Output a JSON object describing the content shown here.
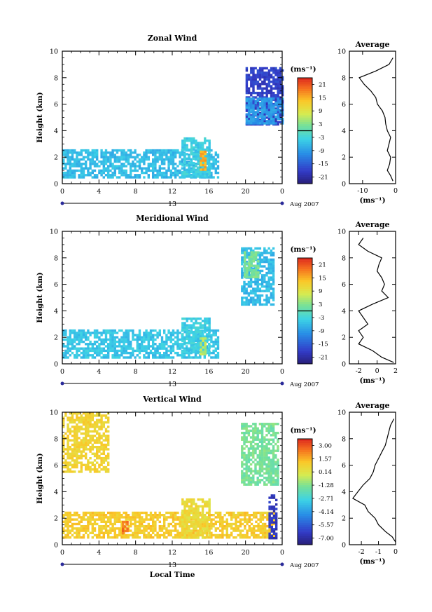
{
  "chart_data": [
    {
      "type": "heatmap",
      "title": "Zonal Wind",
      "ylabel": "Height (km)",
      "yticks": [
        "0",
        "2",
        "4",
        "6",
        "8",
        "10"
      ],
      "xticks": [
        "0",
        "4",
        "8",
        "12",
        "16",
        "20",
        "0"
      ],
      "ylim": [
        0,
        10
      ],
      "xlim": [
        0,
        24
      ],
      "date_label": "13",
      "month_label": "Aug 2007",
      "colorbar": {
        "unit": "(ms⁻¹)",
        "labels": [
          "21",
          "15",
          "9",
          "3",
          "-3",
          "-9",
          "-15",
          "-21"
        ],
        "range": [
          -24,
          24
        ],
        "zero_line": true
      },
      "field_features": [
        {
          "x": [
            0,
            17
          ],
          "y": [
            0.5,
            2.6
          ],
          "value": -6
        },
        {
          "x": [
            13,
            16
          ],
          "y": [
            0.5,
            3.5
          ],
          "value": -4
        },
        {
          "x": [
            20,
            24
          ],
          "y": [
            4.5,
            8.8
          ],
          "value": -18
        },
        {
          "x": [
            20,
            24
          ],
          "y": [
            4.5,
            6.5
          ],
          "value": -9
        },
        {
          "x": [
            15,
            15.5
          ],
          "y": [
            1,
            2.5
          ],
          "value": 15
        }
      ],
      "profile": {
        "title": "Average",
        "xticks": [
          "-10",
          "0"
        ],
        "xlim": [
          -14,
          0
        ],
        "xlabel": "(ms⁻¹)",
        "heights": [
          0.2,
          0.6,
          1.0,
          1.5,
          2.0,
          2.5,
          3.0,
          3.5,
          4.0,
          4.5,
          5.0,
          5.5,
          6.0,
          6.5,
          7.0,
          7.5,
          8.0,
          8.5,
          9.0,
          9.5
        ],
        "values": [
          -0.8,
          -1.5,
          -2.5,
          -1.8,
          -1.5,
          -2.5,
          -2.0,
          -1.5,
          -2.5,
          -3.0,
          -3.2,
          -4.0,
          -5.5,
          -6.0,
          -7.5,
          -9.5,
          -11.0,
          -6.0,
          -2.0,
          -0.8
        ]
      }
    },
    {
      "type": "heatmap",
      "title": "Meridional Wind",
      "ylabel": "Height (km)",
      "yticks": [
        "0",
        "2",
        "4",
        "6",
        "8",
        "10"
      ],
      "xticks": [
        "0",
        "4",
        "8",
        "12",
        "16",
        "20",
        "0"
      ],
      "ylim": [
        0,
        10
      ],
      "xlim": [
        0,
        24
      ],
      "date_label": "13",
      "month_label": "Aug 2007",
      "colorbar": {
        "unit": "(ms⁻¹)",
        "labels": [
          "21",
          "15",
          "9",
          "3",
          "-3",
          "-9",
          "-15",
          "-21"
        ],
        "range": [
          -24,
          24
        ],
        "zero_line": true
      },
      "field_features": [
        {
          "x": [
            0,
            17
          ],
          "y": [
            0.5,
            2.6
          ],
          "value": -5
        },
        {
          "x": [
            13,
            16
          ],
          "y": [
            0.8,
            3.5
          ],
          "value": -4
        },
        {
          "x": [
            19.5,
            23
          ],
          "y": [
            4.5,
            8.8
          ],
          "value": -6
        },
        {
          "x": [
            19.8,
            21.5
          ],
          "y": [
            6.5,
            8.5
          ],
          "value": 2
        },
        {
          "x": [
            15,
            15.5
          ],
          "y": [
            0.8,
            2.0
          ],
          "value": 6
        }
      ],
      "profile": {
        "title": "Average",
        "xticks": [
          "-2",
          "0",
          "2"
        ],
        "xlim": [
          -3,
          2
        ],
        "xlabel": "(ms⁻¹)",
        "heights": [
          0.1,
          0.5,
          1.0,
          1.5,
          2.0,
          2.5,
          3.0,
          3.5,
          4.0,
          4.5,
          5.0,
          5.5,
          6.0,
          6.5,
          7.0,
          7.5,
          8.0,
          8.5,
          9.0,
          9.5
        ],
        "values": [
          1.8,
          0.5,
          -0.5,
          -2.0,
          -1.5,
          -2.0,
          -1.0,
          -1.5,
          -2.0,
          -0.5,
          1.2,
          0.5,
          0.8,
          0.5,
          0.0,
          0.2,
          0.5,
          -1.0,
          -2.0,
          -1.5
        ]
      }
    },
    {
      "type": "heatmap",
      "title": "Vertical Wind",
      "ylabel": "Height (km)",
      "xlabel": "Local Time",
      "yticks": [
        "0",
        "2",
        "4",
        "6",
        "8",
        "10"
      ],
      "xticks": [
        "0",
        "4",
        "8",
        "12",
        "16",
        "20",
        "0"
      ],
      "ylim": [
        0,
        10
      ],
      "xlim": [
        0,
        24
      ],
      "date_label": "13",
      "month_label": "Aug 2007",
      "colorbar": {
        "unit": "(ms⁻¹)",
        "labels": [
          "3.00",
          "1.57",
          "0.14",
          "-1.28",
          "-2.71",
          "-4.14",
          "-5.57",
          "-7.00"
        ],
        "range": [
          -7.7,
          3.7
        ],
        "zero_line": false
      },
      "field_features": [
        {
          "x": [
            0,
            5
          ],
          "y": [
            5.5,
            10
          ],
          "value": 0.8
        },
        {
          "x": [
            0,
            23
          ],
          "y": [
            0.5,
            2.5
          ],
          "value": 1.0
        },
        {
          "x": [
            13,
            16
          ],
          "y": [
            0.5,
            3.5
          ],
          "value": 0.5
        },
        {
          "x": [
            19.5,
            23.5
          ],
          "y": [
            4.5,
            9.2
          ],
          "value": -1.5
        },
        {
          "x": [
            6.5,
            7
          ],
          "y": [
            0.8,
            1.8
          ],
          "value": 2.5
        },
        {
          "x": [
            22.5,
            23.3
          ],
          "y": [
            0.5,
            3.8
          ],
          "value": -6.5
        }
      ],
      "profile": {
        "title": "Average",
        "xticks": [
          "-2",
          "-1",
          "0"
        ],
        "xlim": [
          -2.7,
          0
        ],
        "xlabel": "(ms⁻¹)",
        "heights": [
          0.2,
          0.6,
          1.0,
          1.5,
          2.0,
          2.5,
          3.0,
          3.5,
          4.0,
          4.5,
          5.0,
          5.5,
          6.0,
          6.5,
          7.0,
          7.5,
          8.0,
          8.5,
          9.0,
          9.5
        ],
        "values": [
          0.0,
          -0.2,
          -0.6,
          -1.0,
          -1.2,
          -1.6,
          -1.8,
          -2.5,
          -2.2,
          -1.9,
          -1.5,
          -1.3,
          -1.2,
          -1.0,
          -0.8,
          -0.6,
          -0.5,
          -0.4,
          -0.3,
          -0.1
        ]
      }
    }
  ]
}
